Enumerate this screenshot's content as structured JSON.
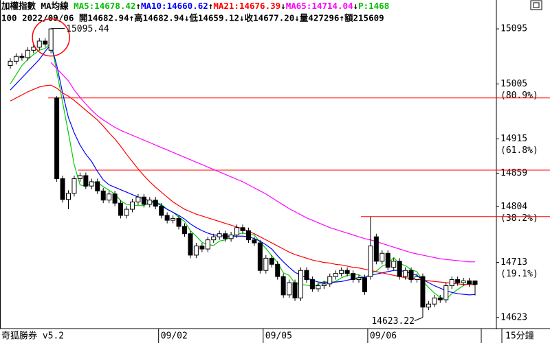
{
  "chart_data": {
    "type": "candlestick",
    "header": [
      {
        "text": "加權指數 MA均線 ",
        "color": "#000000"
      },
      {
        "text": "MA5:14678.42",
        "color": "#00c000"
      },
      {
        "text": "↑",
        "color": "#000000"
      },
      {
        "text": "MA10:14660.62",
        "color": "#0000ff"
      },
      {
        "text": "↑",
        "color": "#000000"
      },
      {
        "text": "MA21:14676.39",
        "color": "#ff0000"
      },
      {
        "text": "↓",
        "color": "#000000"
      },
      {
        "text": "MA65:14714.04",
        "color": "#ff00ff"
      },
      {
        "text": "↓",
        "color": "#000000"
      },
      {
        "text": "P:1468",
        "color": "#00c000"
      }
    ],
    "subheader": "100 2022/09/06 開14682.94↑高14682.94↓低14659.12↓收14677.20↓量427296↑額215609",
    "categories": [
      null,
      null,
      null,
      null,
      null,
      null,
      null,
      null,
      null,
      null,
      null,
      null,
      null,
      null,
      null,
      null,
      null,
      null,
      null,
      null,
      null,
      null,
      null,
      null,
      null,
      null,
      "09/02",
      null,
      null,
      null,
      null,
      null,
      null,
      null,
      null,
      null,
      null,
      null,
      null,
      null,
      null,
      null,
      null,
      null,
      "09/05",
      null,
      null,
      null,
      null,
      null,
      null,
      null,
      null,
      null,
      null,
      null,
      null,
      null,
      null,
      null,
      null,
      null,
      "09/06",
      null,
      null,
      null,
      null,
      null,
      null,
      null,
      null,
      null,
      null,
      null,
      null,
      null,
      null,
      null,
      null,
      null,
      null
    ],
    "open": [
      15035,
      15042,
      15050,
      15048,
      15060,
      15065,
      15075,
      15060,
      14982,
      14850,
      14816,
      14826,
      14850,
      14855,
      14838,
      14845,
      14830,
      14815,
      14825,
      14810,
      14790,
      14800,
      14812,
      14820,
      14808,
      14815,
      14805,
      14790,
      14782,
      14785,
      14772,
      14760,
      14725,
      14740,
      14735,
      14750,
      14755,
      14760,
      14752,
      14758,
      14770,
      14765,
      14750,
      14745,
      14700,
      14720,
      14710,
      14690,
      14660,
      14680,
      14655,
      14700,
      14685,
      14670,
      14675,
      14678,
      14690,
      14695,
      14700,
      14695,
      14685,
      14688,
      14690,
      14755,
      14715,
      14728,
      14705,
      14715,
      14690,
      14700,
      14685,
      14690,
      14640,
      14645,
      14655,
      14652,
      14675,
      14685,
      14680,
      14683,
      14682.94
    ],
    "high": [
      15047,
      15055,
      15055,
      15065,
      15070,
      15080,
      15080,
      15095.44,
      14985,
      14855,
      14831,
      14855,
      14860,
      14860,
      14850,
      14850,
      14835,
      14830,
      14830,
      14815,
      14805,
      14817,
      14825,
      14825,
      14820,
      14820,
      14810,
      14795,
      14790,
      14790,
      14777,
      14765,
      14745,
      14745,
      14755,
      14760,
      14765,
      14765,
      14763,
      14775,
      14775,
      14770,
      14755,
      14750,
      14725,
      14725,
      14715,
      14695,
      14685,
      14685,
      14705,
      14705,
      14690,
      14680,
      14683,
      14695,
      14700,
      14705,
      14705,
      14700,
      14693,
      14693,
      14788,
      14760,
      14733,
      14733,
      14720,
      14720,
      14705,
      14705,
      14695,
      14695,
      14650,
      14660,
      14660,
      14680,
      14690,
      14690,
      14688,
      14688,
      14682.94
    ],
    "low": [
      15030,
      15037,
      15043,
      15043,
      15055,
      15060,
      15065,
      15055,
      14845,
      14811,
      14800,
      14821,
      14845,
      14833,
      14833,
      14825,
      14810,
      14810,
      14805,
      14785,
      14785,
      14795,
      14807,
      14803,
      14803,
      14800,
      14785,
      14777,
      14777,
      14767,
      14755,
      14720,
      14720,
      14730,
      14730,
      14745,
      14750,
      14747,
      14747,
      14753,
      14760,
      14745,
      14740,
      14695,
      14695,
      14705,
      14685,
      14655,
      14655,
      14650,
      14650,
      14680,
      14665,
      14665,
      14670,
      14673,
      14685,
      14690,
      14690,
      14680,
      14680,
      14660,
      14685,
      14710,
      14710,
      14700,
      14700,
      14685,
      14685,
      14680,
      14680,
      14623.22,
      14635,
      14640,
      14647,
      14647,
      14670,
      14675,
      14675,
      14673,
      14659.12
    ],
    "close": [
      15042,
      15050,
      15048,
      15060,
      15065,
      15075,
      15070,
      15095,
      14850,
      14816,
      14826,
      14850,
      14855,
      14838,
      14845,
      14830,
      14815,
      14825,
      14810,
      14790,
      14800,
      14812,
      14820,
      14808,
      14815,
      14805,
      14790,
      14782,
      14785,
      14772,
      14760,
      14725,
      14740,
      14735,
      14750,
      14755,
      14760,
      14752,
      14758,
      14770,
      14765,
      14750,
      14745,
      14700,
      14720,
      14710,
      14690,
      14660,
      14680,
      14655,
      14700,
      14685,
      14670,
      14675,
      14678,
      14690,
      14695,
      14700,
      14695,
      14685,
      14688,
      14665,
      14740,
      14715,
      14728,
      14705,
      14715,
      14690,
      14700,
      14685,
      14690,
      14640,
      14645,
      14655,
      14652,
      14675,
      14685,
      14680,
      14683,
      14678,
      14677.2
    ],
    "up_color": "#ffffff",
    "down_color": "#000000",
    "edge_color": "#000000",
    "series": [
      {
        "color": "#00cc00",
        "values": [
          15005,
          15020,
          15035,
          15045,
          15053,
          15060,
          15063,
          15072,
          15025,
          14975,
          14925,
          14873,
          14840,
          14837,
          14843,
          14844,
          14837,
          14831,
          14825,
          14814,
          14808,
          14807,
          14806,
          14806,
          14811,
          14812,
          14808,
          14800,
          14795,
          14787,
          14780,
          14765,
          14756,
          14746,
          14742,
          14741,
          14748,
          14750,
          14755,
          14759,
          14761,
          14759,
          14758,
          14746,
          14736,
          14724,
          14713,
          14696,
          14692,
          14679,
          14677,
          14676,
          14674,
          14677,
          14682,
          14680,
          14682,
          14688,
          14692,
          14693,
          14693,
          14687,
          14695,
          14699,
          14707,
          14711,
          14721,
          14711,
          14708,
          14701,
          14698,
          14683,
          14672,
          14663,
          14656,
          14653,
          14662,
          14669,
          14675,
          14680,
          14678.42
        ]
      },
      {
        "color": "#0000ff",
        "values": [
          14995,
          15005,
          15015,
          15025,
          15035,
          15045,
          15058,
          15070,
          15035,
          14990,
          14950,
          14925,
          14905,
          14890,
          14878,
          14862,
          14848,
          14840,
          14836,
          14832,
          14828,
          14824,
          14820,
          14817,
          14814,
          14811,
          14806,
          14800,
          14795,
          14790,
          14784,
          14776,
          14770,
          14765,
          14761,
          14758,
          14757,
          14756,
          14756,
          14756,
          14756,
          14755,
          14752,
          14748,
          14742,
          14735,
          14724,
          14714,
          14705,
          14697,
          14692,
          14688,
          14684,
          14681,
          14680,
          14680,
          14681,
          14682,
          14684,
          14686,
          14688,
          14689,
          14692,
          14694,
          14696,
          14698,
          14700,
          14700,
          14698,
          14695,
          14692,
          14685,
          14680,
          14675,
          14671,
          14667,
          14664,
          14662,
          14661,
          14660,
          14660.62
        ]
      },
      {
        "color": "#ff0000",
        "values": [
          14977,
          14982,
          14987,
          14992,
          14996,
          15000,
          15002,
          15003,
          14998,
          14990,
          14985,
          14978,
          14970,
          14962,
          14954,
          14946,
          14936,
          14925,
          14915,
          14903,
          14890,
          14878,
          14866,
          14855,
          14845,
          14836,
          14828,
          14820,
          14812,
          14806,
          14800,
          14796,
          14792,
          14789,
          14786,
          14783,
          14780,
          14777,
          14774,
          14771,
          14768,
          14764,
          14760,
          14755,
          14750,
          14745,
          14740,
          14735,
          14730,
          14726,
          14723,
          14720,
          14717,
          14715,
          14713,
          14712,
          14710,
          14709,
          14707,
          14705,
          14704,
          14702,
          14700,
          14698,
          14696,
          14694,
          14692,
          14690,
          14688,
          14687,
          14686,
          14684,
          14683,
          14682,
          14681,
          14680,
          14679,
          14678,
          14677,
          14677,
          14676.39
        ]
      },
      {
        "color": "#ff00ff",
        "values": [
          null,
          null,
          null,
          null,
          null,
          null,
          null,
          15040,
          15030,
          15020,
          15010,
          14995,
          14983,
          14972,
          14962,
          14953,
          14946,
          14940,
          14934,
          14929,
          14925,
          14921,
          14917,
          14913,
          14909,
          14905,
          14901,
          14897,
          14893,
          14889,
          14885,
          14881,
          14877,
          14873,
          14869,
          14865,
          14861,
          14857,
          14853,
          14849,
          14845,
          14840,
          14835,
          14830,
          14825,
          14819,
          14813,
          14807,
          14801,
          14796,
          14791,
          14786,
          14782,
          14778,
          14774,
          14770,
          14767,
          14764,
          14761,
          14758,
          14755,
          14752,
          14750,
          14747,
          14744,
          14741,
          14738,
          14735,
          14732,
          14729,
          14727,
          14725,
          14723,
          14721,
          14719,
          14718,
          14717,
          14716,
          14715,
          14714,
          14714.04
        ]
      }
    ],
    "ylim": [
      14606,
      15122
    ],
    "yticks": [
      14623,
      14713,
      14804,
      14859,
      14915,
      15005,
      15095
    ],
    "ytick_notes": [
      null,
      "(19.1%)",
      "(38.2%)",
      null,
      "(61.8%)",
      "(80.9%)",
      null
    ],
    "level_lines": {
      "color": "#ff0000",
      "values": [
        14982,
        14864,
        14788
      ]
    },
    "highlight_color": "#ff0000",
    "footer_left": "奇狐勝券 v5.2",
    "footer_right": "15分鐘"
  }
}
